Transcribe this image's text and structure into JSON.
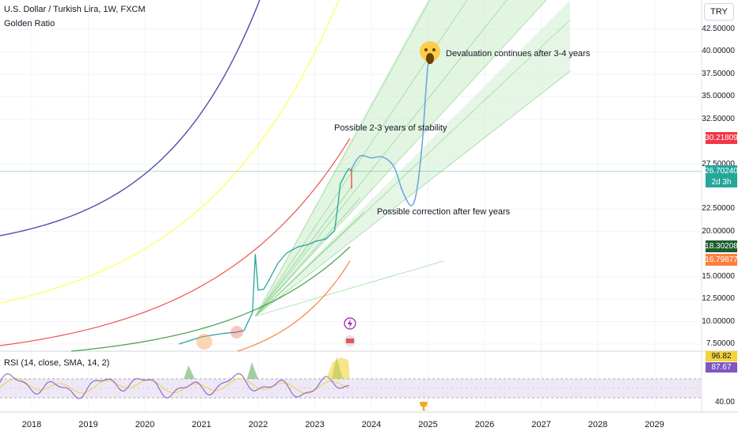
{
  "header": {
    "title": "U.S. Dollar / Turkish Lira, 1W, FXCM",
    "indicator": "Golden Ratio",
    "currency": "TRY"
  },
  "rsi": {
    "title": "RSI (14, close, SMA, 14, 2)",
    "tick_label": "40.00",
    "value_1": "96.82",
    "value_2": "87.67"
  },
  "price_badges": {
    "upper": "30.21809",
    "current": "26.70240",
    "countdown": "2d 3h",
    "green": "18.30208",
    "orange": "16.79877"
  },
  "annotations": {
    "devaluation": "Devaluation continues after 3-4 years",
    "stability": "Possible 2-3 years of stability",
    "correction": "Possible correction after few years"
  },
  "colors": {
    "price_line": "#26a69a",
    "projection": "#6fa8dc",
    "fan_fill": "#c8ecc8",
    "band_upper": "#ef5350",
    "band_green": "#43a047",
    "band_orange": "#ff7f3f",
    "band_yellow": "#ffff66",
    "band_purple": "#5c47a8",
    "rsi_line": "#7e57c2",
    "rsi_ma": "#f2d33a",
    "rsi_band": "#ede7f6"
  },
  "chart_data": {
    "type": "line",
    "title": "U.S. Dollar / Turkish Lira, 1W, FXCM",
    "y_scale": "linear",
    "ylim": [
      7.5,
      42.5
    ],
    "y_ticks": [
      "42.50000",
      "40.00000",
      "37.50000",
      "35.00000",
      "32.50000",
      "27.50000",
      "22.50000",
      "20.00000",
      "15.00000",
      "12.50000",
      "10.00000",
      "7.50000"
    ],
    "x_ticks": [
      "2018",
      "2019",
      "2020",
      "2021",
      "2022",
      "2023",
      "2024",
      "2025",
      "2026",
      "2027",
      "2028",
      "2029"
    ],
    "grid": true,
    "series": [
      {
        "name": "U.S. Dollar / Turkish Lira",
        "x": [
          2020.6,
          2020.8,
          2021.0,
          2021.2,
          2021.4,
          2021.6,
          2021.75,
          2021.9,
          2021.95,
          2022.0,
          2022.1,
          2022.2,
          2022.35,
          2022.5,
          2022.7,
          2022.9,
          2023.0,
          2023.2,
          2023.35,
          2023.42,
          2023.45,
          2023.5,
          2023.55,
          2023.6,
          2023.65
        ],
        "values": [
          7.5,
          7.9,
          8.3,
          8.5,
          8.7,
          8.8,
          9.0,
          11.0,
          17.5,
          13.5,
          13.6,
          14.7,
          16.5,
          17.6,
          18.3,
          18.6,
          18.9,
          19.2,
          20.1,
          23.5,
          25.3,
          25.9,
          26.5,
          27.0,
          26.7
        ]
      },
      {
        "x": [
          2023.65,
          2023.8,
          2024.0,
          2024.2,
          2024.4,
          2024.55,
          2024.7,
          2024.8,
          2024.9,
          2025.0,
          2025.1
        ],
        "values": [
          27.0,
          28.4,
          28.2,
          28.3,
          27.2,
          24.5,
          22.9,
          24.5,
          30.0,
          38.5,
          39.5
        ]
      }
    ],
    "rsi": {
      "ylim": [
        0,
        100
      ],
      "levels": [
        30,
        70
      ],
      "last": [
        96.82,
        87.67
      ]
    }
  }
}
